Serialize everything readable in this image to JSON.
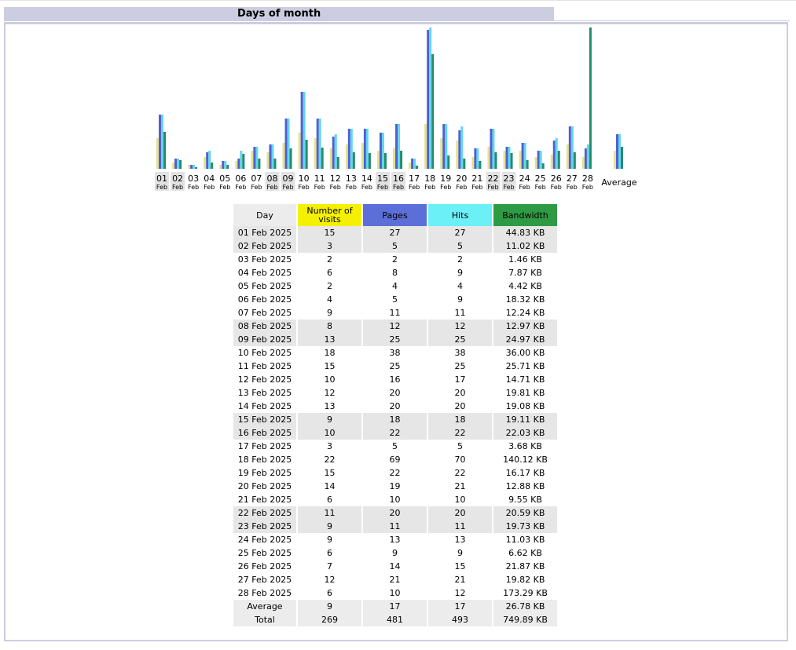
{
  "section": {
    "title": "Days of month"
  },
  "chart_data": {
    "type": "bar",
    "series": [
      {
        "name": "Number of visits",
        "color": "#e6e28a",
        "values": [
          15,
          3,
          2,
          6,
          2,
          4,
          9,
          8,
          13,
          18,
          15,
          10,
          12,
          13,
          9,
          10,
          3,
          22,
          15,
          14,
          6,
          11,
          9,
          9,
          6,
          7,
          12,
          6
        ]
      },
      {
        "name": "Pages",
        "color": "#4f5fd0",
        "values": [
          27,
          5,
          2,
          8,
          4,
          5,
          11,
          12,
          25,
          38,
          25,
          16,
          20,
          20,
          18,
          22,
          5,
          69,
          22,
          19,
          10,
          20,
          11,
          13,
          9,
          14,
          21,
          10
        ]
      },
      {
        "name": "Hits",
        "color": "#63d6ee",
        "values": [
          27,
          5,
          2,
          9,
          4,
          9,
          11,
          12,
          25,
          38,
          25,
          17,
          20,
          20,
          18,
          22,
          5,
          70,
          22,
          21,
          10,
          20,
          11,
          13,
          9,
          15,
          21,
          12
        ]
      },
      {
        "name": "Bandwidth",
        "color": "#258c6a",
        "values": [
          44.83,
          11.02,
          1.46,
          7.87,
          4.42,
          18.32,
          12.24,
          12.97,
          24.97,
          36.0,
          25.71,
          14.71,
          19.81,
          19.08,
          19.11,
          22.03,
          3.68,
          140.12,
          16.17,
          12.88,
          9.55,
          20.59,
          19.73,
          11.03,
          6.62,
          21.87,
          19.82,
          173.29
        ]
      }
    ],
    "categories": [
      "01",
      "02",
      "03",
      "04",
      "05",
      "06",
      "07",
      "08",
      "09",
      "10",
      "11",
      "12",
      "13",
      "14",
      "15",
      "16",
      "17",
      "18",
      "19",
      "20",
      "21",
      "22",
      "23",
      "24",
      "25",
      "26",
      "27",
      "28"
    ],
    "month": "Feb",
    "weekend_days": [
      "01",
      "02",
      "08",
      "09",
      "15",
      "16",
      "22",
      "23"
    ],
    "average": {
      "label": "Average",
      "visits": 9,
      "pages": 17,
      "hits": 17,
      "bandwidth": 26.78
    }
  },
  "table": {
    "headers": {
      "day": "Day",
      "visits": "Number of visits",
      "pages": "Pages",
      "hits": "Hits",
      "bandwidth": "Bandwidth"
    },
    "rows": [
      {
        "day": "01 Feb 2025",
        "visits": "15",
        "pages": "27",
        "hits": "27",
        "bandwidth": "44.83 KB"
      },
      {
        "day": "02 Feb 2025",
        "visits": "3",
        "pages": "5",
        "hits": "5",
        "bandwidth": "11.02 KB"
      },
      {
        "day": "03 Feb 2025",
        "visits": "2",
        "pages": "2",
        "hits": "2",
        "bandwidth": "1.46 KB"
      },
      {
        "day": "04 Feb 2025",
        "visits": "6",
        "pages": "8",
        "hits": "9",
        "bandwidth": "7.87 KB"
      },
      {
        "day": "05 Feb 2025",
        "visits": "2",
        "pages": "4",
        "hits": "4",
        "bandwidth": "4.42 KB"
      },
      {
        "day": "06 Feb 2025",
        "visits": "4",
        "pages": "5",
        "hits": "9",
        "bandwidth": "18.32 KB"
      },
      {
        "day": "07 Feb 2025",
        "visits": "9",
        "pages": "11",
        "hits": "11",
        "bandwidth": "12.24 KB"
      },
      {
        "day": "08 Feb 2025",
        "visits": "8",
        "pages": "12",
        "hits": "12",
        "bandwidth": "12.97 KB"
      },
      {
        "day": "09 Feb 2025",
        "visits": "13",
        "pages": "25",
        "hits": "25",
        "bandwidth": "24.97 KB"
      },
      {
        "day": "10 Feb 2025",
        "visits": "18",
        "pages": "38",
        "hits": "38",
        "bandwidth": "36.00 KB"
      },
      {
        "day": "11 Feb 2025",
        "visits": "15",
        "pages": "25",
        "hits": "25",
        "bandwidth": "25.71 KB"
      },
      {
        "day": "12 Feb 2025",
        "visits": "10",
        "pages": "16",
        "hits": "17",
        "bandwidth": "14.71 KB"
      },
      {
        "day": "13 Feb 2025",
        "visits": "12",
        "pages": "20",
        "hits": "20",
        "bandwidth": "19.81 KB"
      },
      {
        "day": "14 Feb 2025",
        "visits": "13",
        "pages": "20",
        "hits": "20",
        "bandwidth": "19.08 KB"
      },
      {
        "day": "15 Feb 2025",
        "visits": "9",
        "pages": "18",
        "hits": "18",
        "bandwidth": "19.11 KB"
      },
      {
        "day": "16 Feb 2025",
        "visits": "10",
        "pages": "22",
        "hits": "22",
        "bandwidth": "22.03 KB"
      },
      {
        "day": "17 Feb 2025",
        "visits": "3",
        "pages": "5",
        "hits": "5",
        "bandwidth": "3.68 KB"
      },
      {
        "day": "18 Feb 2025",
        "visits": "22",
        "pages": "69",
        "hits": "70",
        "bandwidth": "140.12 KB"
      },
      {
        "day": "19 Feb 2025",
        "visits": "15",
        "pages": "22",
        "hits": "22",
        "bandwidth": "16.17 KB"
      },
      {
        "day": "20 Feb 2025",
        "visits": "14",
        "pages": "19",
        "hits": "21",
        "bandwidth": "12.88 KB"
      },
      {
        "day": "21 Feb 2025",
        "visits": "6",
        "pages": "10",
        "hits": "10",
        "bandwidth": "9.55 KB"
      },
      {
        "day": "22 Feb 2025",
        "visits": "11",
        "pages": "20",
        "hits": "20",
        "bandwidth": "20.59 KB"
      },
      {
        "day": "23 Feb 2025",
        "visits": "9",
        "pages": "11",
        "hits": "11",
        "bandwidth": "19.73 KB"
      },
      {
        "day": "24 Feb 2025",
        "visits": "9",
        "pages": "13",
        "hits": "13",
        "bandwidth": "11.03 KB"
      },
      {
        "day": "25 Feb 2025",
        "visits": "6",
        "pages": "9",
        "hits": "9",
        "bandwidth": "6.62 KB"
      },
      {
        "day": "26 Feb 2025",
        "visits": "7",
        "pages": "14",
        "hits": "15",
        "bandwidth": "21.87 KB"
      },
      {
        "day": "27 Feb 2025",
        "visits": "12",
        "pages": "21",
        "hits": "21",
        "bandwidth": "19.82 KB"
      },
      {
        "day": "28 Feb 2025",
        "visits": "6",
        "pages": "10",
        "hits": "12",
        "bandwidth": "173.29 KB"
      }
    ],
    "average": {
      "day": "Average",
      "visits": "9",
      "pages": "17",
      "hits": "17",
      "bandwidth": "26.78 KB"
    },
    "total": {
      "day": "Total",
      "visits": "269",
      "pages": "481",
      "hits": "493",
      "bandwidth": "749.89 KB"
    }
  }
}
